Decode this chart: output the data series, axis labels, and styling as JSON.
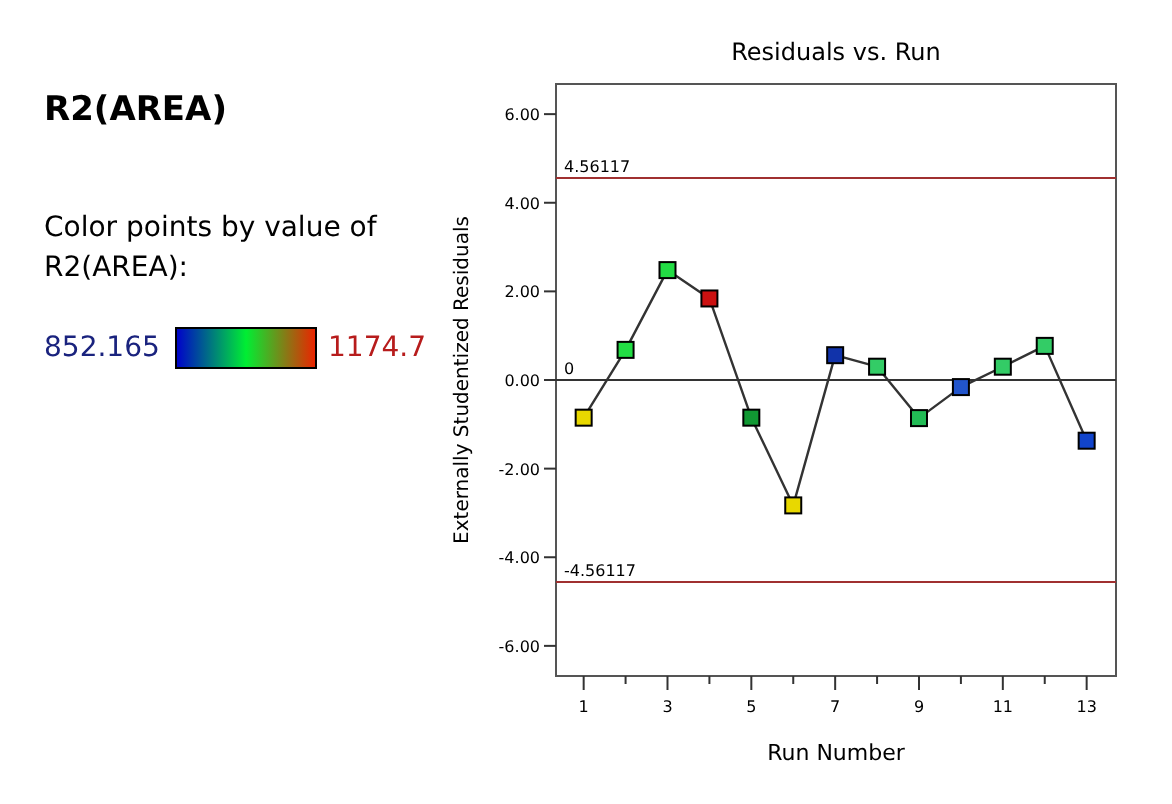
{
  "chart_data": {
    "type": "line",
    "title": "Residuals vs. Run",
    "subtitle": "R2(AREA)",
    "xlabel": "Run Number",
    "ylabel": "Externally Studentized Residuals",
    "clabel": "Color points by value of R2(AREA):",
    "annotations": [
      "852.165",
      "1174.7"
    ],
    "x": [
      1,
      2,
      3,
      4,
      5,
      6,
      7,
      8,
      9,
      10,
      11,
      12,
      13
    ],
    "series": [
      {
        "color": "#333333",
        "values": [
          -0.85,
          0.68,
          2.48,
          1.84,
          -0.85,
          -2.83,
          0.56,
          0.3,
          -0.86,
          -0.16,
          0.3,
          0.77,
          -1.37
        ],
        "colors": [
          "#e8d800",
          "#22dd44",
          "#22dd44",
          "#cc1111",
          "#119933",
          "#e8d800",
          "#1133aa",
          "#33cc66",
          "#22bb55",
          "#2255cc",
          "#33cc66",
          "#33cc66",
          "#1144cc"
        ]
      }
    ],
    "xlim": [
      0.34,
      13.7
    ],
    "xticks": [
      1,
      {
        "value": 2,
        "label": null
      },
      3,
      {
        "value": 4,
        "label": null
      },
      5,
      {
        "value": 6,
        "label": null
      },
      7,
      {
        "value": 8,
        "label": null
      },
      9,
      {
        "value": 10,
        "label": null
      },
      11,
      {
        "value": 12,
        "label": null
      },
      13
    ],
    "ylim": [
      -6.68,
      6.68
    ],
    "yticks": [
      {
        "value": -6,
        "label": "-6.00"
      },
      {
        "value": -4,
        "label": "-4.00"
      },
      {
        "value": -2,
        "label": "-2.00"
      },
      {
        "value": 0,
        "label": "0.00"
      },
      {
        "value": 2,
        "label": "2.00"
      },
      {
        "value": 4,
        "label": "4.00"
      },
      {
        "value": 6,
        "label": "6.00"
      }
    ],
    "ref_lines": [
      {
        "axis": "y",
        "value": 4.56117,
        "label": "4.56117",
        "color": "#a03030"
      },
      {
        "axis": "y",
        "value": 0,
        "label": "0",
        "color": "#333333"
      },
      {
        "axis": "y",
        "value": -4.56117,
        "label": "-4.56117",
        "color": "#a03030"
      }
    ],
    "grid": false,
    "marker": "square",
    "line_style": "solid"
  }
}
